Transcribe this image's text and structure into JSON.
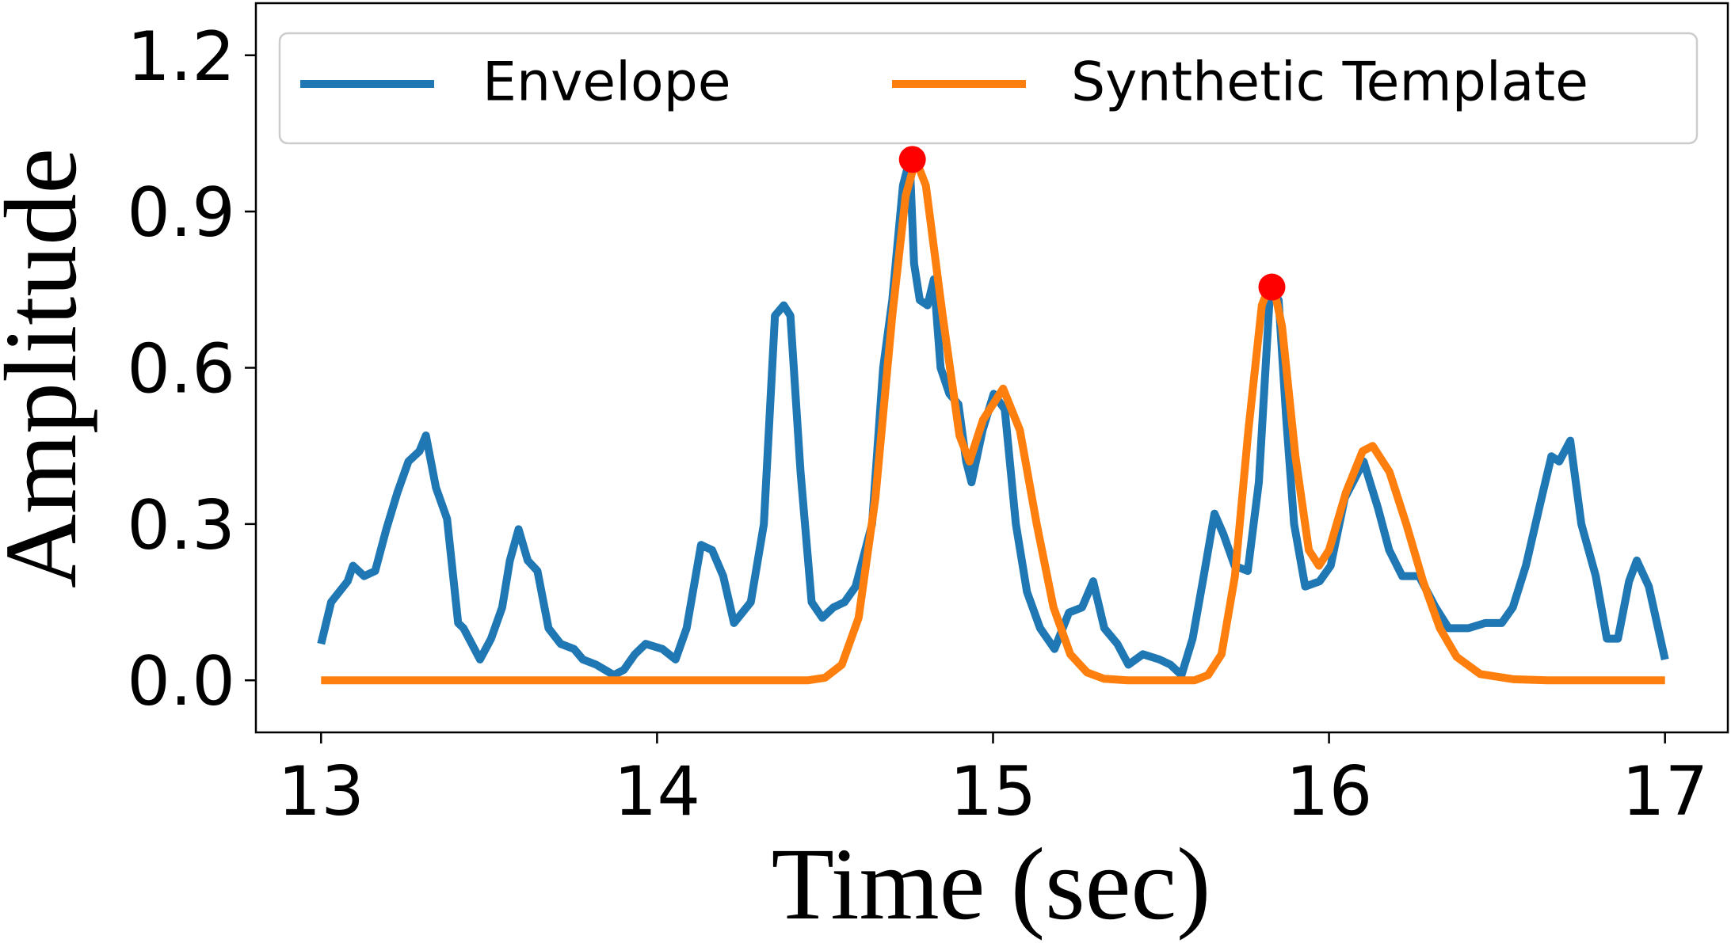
{
  "chart_data": {
    "type": "line",
    "xlabel": "Time (sec)",
    "ylabel": "Amplitude",
    "xlim": [
      12.806,
      17.187
    ],
    "ylim": [
      -0.1,
      1.3
    ],
    "xticks": [
      13,
      14,
      15,
      16,
      17
    ],
    "yticks": [
      {
        "value": 0,
        "label": "0.0"
      },
      0.3,
      0.6,
      0.9,
      1.2
    ],
    "legend": "top",
    "series": [
      {
        "name": "Envelope",
        "color": "#1f77b4",
        "x": [
          13.0,
          13.03,
          13.079,
          13.095,
          13.128,
          13.161,
          13.194,
          13.227,
          13.26,
          13.293,
          13.312,
          13.342,
          13.375,
          13.408,
          13.424,
          13.473,
          13.506,
          13.539,
          13.562,
          13.588,
          13.615,
          13.644,
          13.677,
          13.713,
          13.753,
          13.779,
          13.819,
          13.871,
          13.901,
          13.934,
          13.966,
          14.016,
          14.055,
          14.088,
          14.131,
          14.164,
          14.197,
          14.229,
          14.279,
          14.318,
          14.351,
          14.377,
          14.397,
          14.427,
          14.46,
          14.492,
          14.525,
          14.558,
          14.591,
          14.64,
          14.673,
          14.7,
          14.732,
          14.752,
          14.765,
          14.782,
          14.805,
          14.824,
          14.844,
          14.87,
          14.897,
          14.92,
          14.936,
          14.969,
          15.002,
          15.035,
          15.068,
          15.101,
          15.14,
          15.183,
          15.226,
          15.265,
          15.298,
          15.331,
          15.37,
          15.403,
          15.446,
          15.495,
          15.528,
          15.561,
          15.594,
          15.627,
          15.659,
          15.686,
          15.719,
          15.758,
          15.791,
          15.824,
          15.85,
          15.873,
          15.896,
          15.929,
          15.972,
          16.005,
          16.047,
          16.103,
          16.146,
          16.179,
          16.218,
          16.268,
          16.317,
          16.356,
          16.415,
          16.465,
          16.514,
          16.547,
          16.586,
          16.629,
          16.662,
          16.685,
          16.718,
          16.751,
          16.794,
          16.827,
          16.86,
          16.893,
          16.916,
          16.952,
          17.0
        ],
        "values": [
          0.07,
          0.15,
          0.19,
          0.22,
          0.2,
          0.21,
          0.29,
          0.36,
          0.42,
          0.44,
          0.47,
          0.37,
          0.31,
          0.11,
          0.1,
          0.04,
          0.08,
          0.14,
          0.23,
          0.29,
          0.23,
          0.21,
          0.1,
          0.07,
          0.06,
          0.04,
          0.03,
          0.01,
          0.02,
          0.05,
          0.07,
          0.06,
          0.04,
          0.1,
          0.26,
          0.25,
          0.2,
          0.11,
          0.15,
          0.3,
          0.7,
          0.72,
          0.7,
          0.4,
          0.15,
          0.12,
          0.14,
          0.15,
          0.18,
          0.3,
          0.6,
          0.73,
          0.95,
          1.0,
          0.8,
          0.73,
          0.72,
          0.77,
          0.6,
          0.55,
          0.53,
          0.42,
          0.38,
          0.48,
          0.55,
          0.52,
          0.3,
          0.17,
          0.1,
          0.06,
          0.13,
          0.14,
          0.19,
          0.1,
          0.07,
          0.03,
          0.05,
          0.04,
          0.03,
          0.01,
          0.08,
          0.2,
          0.32,
          0.28,
          0.22,
          0.21,
          0.38,
          0.74,
          0.73,
          0.5,
          0.3,
          0.18,
          0.19,
          0.22,
          0.35,
          0.42,
          0.33,
          0.25,
          0.2,
          0.2,
          0.14,
          0.1,
          0.1,
          0.11,
          0.11,
          0.14,
          0.22,
          0.34,
          0.43,
          0.42,
          0.46,
          0.3,
          0.2,
          0.08,
          0.08,
          0.19,
          0.23,
          0.18,
          0.04
        ]
      },
      {
        "name": "Synthetic Template",
        "color": "#ff7f0e",
        "x": [
          13.0,
          14.45,
          14.5,
          14.55,
          14.6,
          14.65,
          14.7,
          14.74,
          14.77,
          14.8,
          14.85,
          14.9,
          14.93,
          14.97,
          15.03,
          15.08,
          15.13,
          15.18,
          15.23,
          15.28,
          15.33,
          15.4,
          15.6,
          15.64,
          15.68,
          15.72,
          15.76,
          15.8,
          15.83,
          15.86,
          15.9,
          15.94,
          15.97,
          16.0,
          16.05,
          16.1,
          16.13,
          16.18,
          16.23,
          16.28,
          16.33,
          16.38,
          16.45,
          16.55,
          16.65,
          17.0
        ],
        "values": [
          0,
          0,
          0.005,
          0.03,
          0.12,
          0.35,
          0.7,
          0.93,
          1.0,
          0.95,
          0.7,
          0.47,
          0.42,
          0.5,
          0.56,
          0.48,
          0.3,
          0.14,
          0.05,
          0.015,
          0.003,
          0,
          0,
          0.01,
          0.05,
          0.2,
          0.48,
          0.72,
          0.77,
          0.68,
          0.43,
          0.25,
          0.22,
          0.25,
          0.36,
          0.44,
          0.45,
          0.4,
          0.3,
          0.19,
          0.1,
          0.045,
          0.012,
          0.002,
          0,
          0
        ]
      }
    ],
    "peaks": {
      "color": "#ff0000",
      "x": [
        14.76,
        15.83
      ],
      "values": [
        1.0,
        0.755
      ]
    }
  }
}
